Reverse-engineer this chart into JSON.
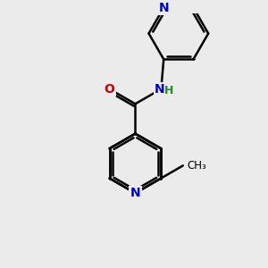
{
  "background_color": "#ebebeb",
  "atom_colors": {
    "N": "#0000cc",
    "O": "#cc0000",
    "H": "#228B22",
    "C": "#000000"
  },
  "bond_color": "#000000",
  "bond_width": 1.8,
  "font_size_atoms": 10,
  "bg": "#ebebeb"
}
